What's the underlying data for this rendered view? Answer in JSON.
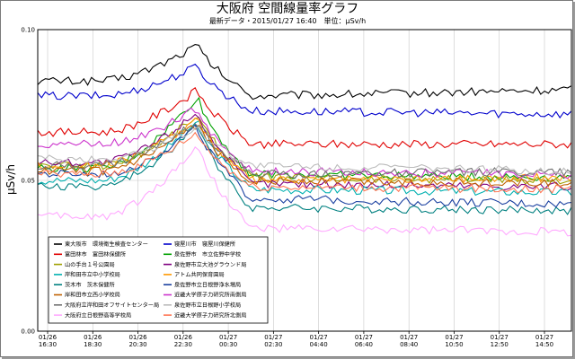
{
  "title": "大阪府 空間線量率グラフ",
  "subtitle": "最新データ・2015/01/27 16:40　単位：μSv/h",
  "chart_data": {
    "type": "line",
    "ylabel": "μSv/h",
    "ylim": [
      0,
      0.1
    ],
    "yticks": [
      "0.00",
      "0.05",
      "0.10"
    ],
    "grid": true,
    "legend_position": "bottom-left inside plot",
    "x_ticks": [
      {
        "date": "01/26",
        "time": "16:30"
      },
      {
        "date": "01/26",
        "time": "18:30"
      },
      {
        "date": "01/26",
        "time": "20:30"
      },
      {
        "date": "01/26",
        "time": "22:30"
      },
      {
        "date": "01/27",
        "time": "00:30"
      },
      {
        "date": "01/27",
        "time": "02:30"
      },
      {
        "date": "01/27",
        "time": "04:40"
      },
      {
        "date": "01/27",
        "time": "06:40"
      },
      {
        "date": "01/27",
        "time": "08:40"
      },
      {
        "date": "01/27",
        "time": "10:50"
      },
      {
        "date": "01/27",
        "time": "12:50"
      },
      {
        "date": "01/27",
        "time": "14:50"
      }
    ],
    "series": [
      {
        "name": "東大阪市　環境衛生検査センター",
        "color": "#000000",
        "base": 0.083,
        "peak": 0.095,
        "post": 0.078,
        "end": 0.08
      },
      {
        "name": "寝屋川市　寝屋川保健所",
        "color": "#0000cc",
        "base": 0.078,
        "peak": 0.088,
        "post": 0.073,
        "end": 0.072
      },
      {
        "name": "富田林市　富田林保健所",
        "color": "#e00000",
        "base": 0.066,
        "peak": 0.08,
        "post": 0.062,
        "end": 0.062
      },
      {
        "name": "泉佐野市　市立佐野中学校",
        "color": "#00a000",
        "base": 0.054,
        "peak": 0.078,
        "post": 0.052,
        "end": 0.051
      },
      {
        "name": "山の手台１号公園局",
        "color": "#a0a000",
        "base": 0.055,
        "peak": 0.072,
        "post": 0.051,
        "end": 0.05
      },
      {
        "name": "泉佐野市立大池グラウンド局",
        "color": "#800080",
        "base": 0.056,
        "peak": 0.073,
        "post": 0.049,
        "end": 0.048
      },
      {
        "name": "岸和田市立中小学校局",
        "color": "#00b0b0",
        "base": 0.05,
        "peak": 0.07,
        "post": 0.047,
        "end": 0.046
      },
      {
        "name": "アトム共同保育園局",
        "color": "#ff9900",
        "base": 0.055,
        "peak": 0.071,
        "post": 0.05,
        "end": 0.051
      },
      {
        "name": "茨木市　茨木保健所",
        "color": "#008080",
        "base": 0.048,
        "peak": 0.069,
        "post": 0.041,
        "end": 0.04
      },
      {
        "name": "泉佐野市立日根野浄水場局",
        "color": "#1a40a0",
        "base": 0.052,
        "peak": 0.068,
        "post": 0.044,
        "end": 0.042
      },
      {
        "name": "岸和田市立西小学校局",
        "color": "#c06000",
        "base": 0.053,
        "peak": 0.069,
        "post": 0.05,
        "end": 0.049
      },
      {
        "name": "近畿大学原子力研究所南側局",
        "color": "#cc33cc",
        "base": 0.062,
        "peak": 0.074,
        "post": 0.053,
        "end": 0.052
      },
      {
        "name": "大阪府立岸和田オフサイトセンター局",
        "color": "#707070",
        "base": 0.055,
        "peak": 0.07,
        "post": 0.052,
        "end": 0.053
      },
      {
        "name": "泉佐野市立日根野小学校局",
        "color": "#bbbbbb",
        "base": 0.057,
        "peak": 0.068,
        "post": 0.055,
        "end": 0.053
      },
      {
        "name": "大阪府立日根野高等学校局",
        "color": "#ffaaff",
        "base": 0.038,
        "peak": 0.062,
        "post": 0.034,
        "end": 0.033
      },
      {
        "name": "近畿大学原子力研究所北側局",
        "color": "#ff7755",
        "base": 0.052,
        "peak": 0.066,
        "post": 0.048,
        "end": 0.047
      }
    ]
  }
}
